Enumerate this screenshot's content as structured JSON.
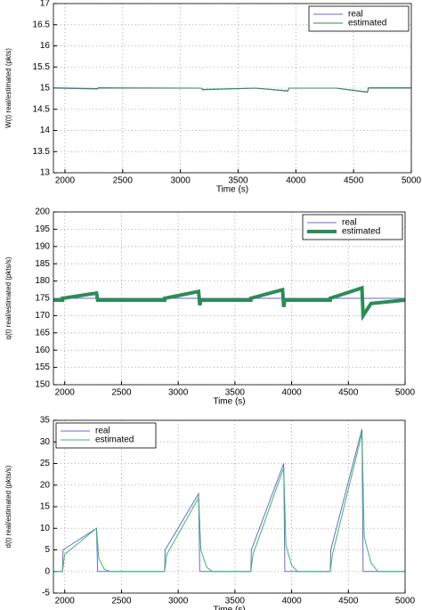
{
  "chart_data": [
    {
      "type": "line",
      "ylabel": "W(t) real/estimated (pkts)",
      "xlabel": "Time (s)",
      "xlim": [
        1900,
        5000
      ],
      "xticks": [
        2000,
        2500,
        3000,
        3500,
        4000,
        4500,
        5000
      ],
      "ylim": [
        13,
        17
      ],
      "yticks": [
        13,
        13.5,
        14,
        14.5,
        15,
        15.5,
        16,
        16.5,
        17
      ],
      "grid": true,
      "legend": "upper right",
      "series": [
        {
          "name": "real",
          "color": "#6a6acd",
          "width": 1,
          "x": [
            1900,
            2280,
            2290,
            3180,
            3190,
            3650,
            3930,
            3940,
            4350,
            4620,
            4630,
            5000
          ],
          "values": [
            15.0,
            14.98,
            15.0,
            15.0,
            14.96,
            15.0,
            14.94,
            15.0,
            15.0,
            14.9,
            15.0,
            15.0
          ]
        },
        {
          "name": "estimated",
          "color": "#2e8b57",
          "width": 1,
          "x": [
            1900,
            2280,
            2290,
            3180,
            3190,
            3650,
            3930,
            3940,
            4350,
            4620,
            4630,
            5000
          ],
          "values": [
            15.01,
            14.99,
            15.01,
            15.0,
            14.97,
            15.0,
            14.93,
            15.0,
            15.0,
            14.91,
            15.01,
            15.01
          ]
        }
      ]
    },
    {
      "type": "line",
      "ylabel": "q(t) real/estimated (pkts/s)",
      "xlabel": "Time (s)",
      "xlim": [
        1900,
        5000
      ],
      "xticks": [
        2000,
        2500,
        3000,
        3500,
        4000,
        4500,
        5000
      ],
      "ylim": [
        150,
        200
      ],
      "yticks": [
        150,
        155,
        160,
        165,
        170,
        175,
        180,
        185,
        190,
        195,
        200
      ],
      "grid": true,
      "legend": "upper right",
      "series": [
        {
          "name": "real",
          "color": "#6a6acd",
          "width": 1,
          "x": [
            1900,
            5000
          ],
          "values": [
            175,
            175
          ]
        },
        {
          "name": "estimated",
          "color": "#2e8b57",
          "width": 4,
          "x": [
            1900,
            1980,
            1980,
            2280,
            2290,
            2880,
            2880,
            3180,
            3190,
            3200,
            3640,
            3640,
            3920,
            3930,
            3940,
            4340,
            4340,
            4620,
            4630,
            4700,
            5000
          ],
          "values": [
            174.5,
            174.5,
            175,
            176.5,
            174.5,
            174.5,
            175,
            177,
            173,
            174.5,
            174.5,
            175,
            177.5,
            172.5,
            174.5,
            174.5,
            175,
            178,
            170,
            173.5,
            174.5
          ]
        }
      ]
    },
    {
      "type": "line",
      "ylabel": "d(t) real/estimated (pkts/s)",
      "xlabel": "Time (s)",
      "xlim": [
        1900,
        5000
      ],
      "xticks": [
        2000,
        2500,
        3000,
        3500,
        4000,
        4500,
        5000
      ],
      "ylim": [
        -5,
        35
      ],
      "yticks": [
        -5,
        0,
        5,
        10,
        15,
        20,
        25,
        30,
        35
      ],
      "grid": true,
      "legend": "upper left",
      "series": [
        {
          "name": "real",
          "color": "#6a6acd",
          "width": 1,
          "x": [
            1900,
            1980,
            1985,
            2280,
            2290,
            2880,
            2885,
            3180,
            3190,
            3640,
            3645,
            3930,
            3940,
            4340,
            4345,
            4620,
            4630,
            5000
          ],
          "values": [
            0,
            0,
            5,
            10,
            0,
            0,
            5,
            18,
            0,
            0,
            5,
            25,
            0,
            0,
            5,
            33,
            0,
            0
          ]
        },
        {
          "name": "estimated",
          "color": "#3cb371",
          "width": 1,
          "x": [
            1900,
            1980,
            2000,
            2280,
            2300,
            2350,
            2400,
            2880,
            2900,
            3180,
            3200,
            3250,
            3300,
            3640,
            3660,
            3930,
            3950,
            4000,
            4050,
            4340,
            4360,
            4620,
            4640,
            4700,
            4760,
            5000
          ],
          "values": [
            0,
            0,
            4,
            10,
            3,
            0.5,
            0,
            0,
            4,
            17,
            5,
            1,
            0,
            0,
            4,
            24,
            6,
            1.5,
            0,
            0,
            4,
            32,
            8,
            2,
            0,
            0
          ]
        }
      ]
    }
  ]
}
